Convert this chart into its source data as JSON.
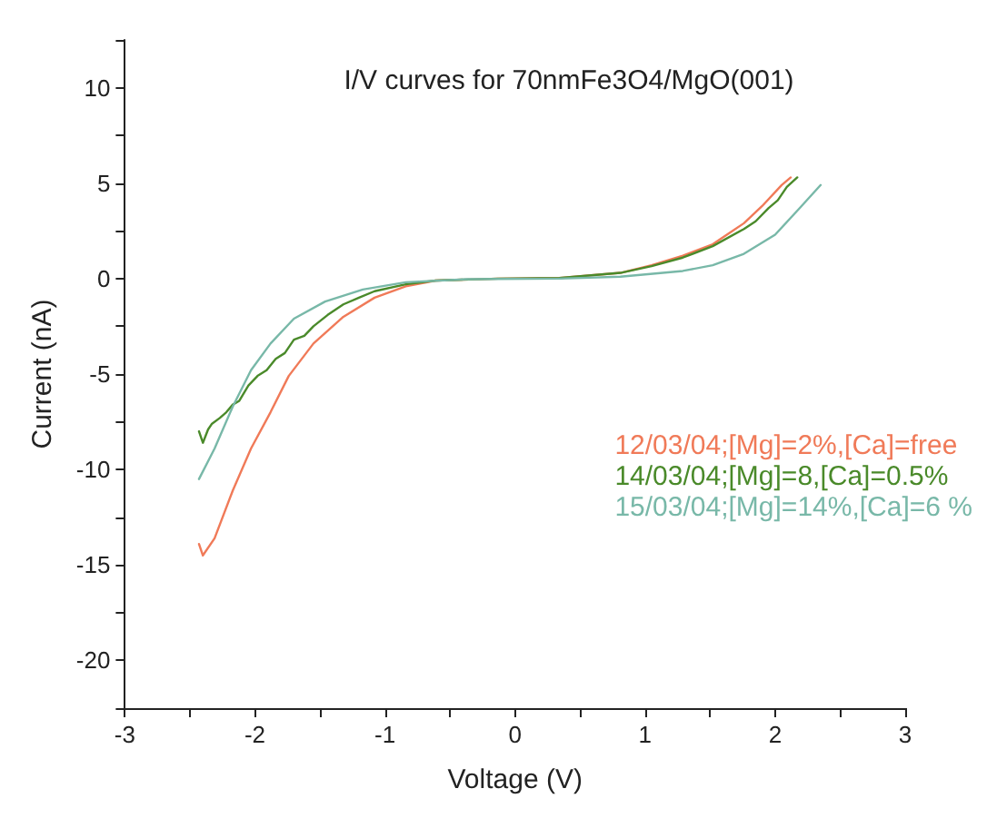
{
  "chart_data": {
    "type": "line",
    "title": "I/V curves for 70nmFe3O4/MgO(001)",
    "xlabel": "Voltage (V)",
    "ylabel": "Current (nA)",
    "xlim": [
      -3,
      3
    ],
    "xticks": [
      -3,
      {
        "value": -2.5,
        "label": null
      },
      -2,
      {
        "value": -1.5,
        "label": null
      },
      -1,
      {
        "value": -0.5,
        "label": null
      },
      0,
      {
        "value": 0.5,
        "label": null
      },
      1,
      {
        "value": 1.5,
        "label": null
      },
      2,
      {
        "value": 2.5,
        "label": null
      },
      3
    ],
    "ylim": [
      -22.5,
      12.5
    ],
    "yticks": [
      {
        "value": -22.5,
        "label": null
      },
      -20,
      {
        "value": -17.5,
        "label": null
      },
      -15,
      {
        "value": -12.5,
        "label": null
      },
      -10,
      {
        "value": -7.5,
        "label": null
      },
      -5,
      {
        "value": -2.5,
        "label": null
      },
      0,
      {
        "value": 2.5,
        "label": null
      },
      5,
      {
        "value": 7.5,
        "label": null
      },
      10,
      {
        "value": 12.5,
        "label": null
      }
    ],
    "grid": false,
    "legend": "right",
    "marker": "none",
    "line_style": "solid",
    "series": [
      {
        "name": "12/03/04;[Mg]=2%,[Ca]=free",
        "color": "#f07a58",
        "x": [
          -2.43,
          -2.4,
          -2.31,
          -2.17,
          -2.03,
          -1.88,
          -1.74,
          -1.55,
          -1.32,
          -1.08,
          -0.84,
          -0.61,
          -0.13,
          0.34,
          0.81,
          1.05,
          1.29,
          1.52,
          1.76,
          1.9,
          2.05,
          2.12
        ],
        "values": [
          -13.9,
          -14.5,
          -13.6,
          -11.1,
          -8.9,
          -7.0,
          -5.1,
          -3.4,
          -2.0,
          -1.0,
          -0.4,
          -0.1,
          0,
          0.03,
          0.3,
          0.7,
          1.2,
          1.8,
          2.9,
          3.8,
          4.9,
          5.3
        ]
      },
      {
        "name": "14/03/04;[Mg]=8,[Ca]=0.5%",
        "color": "#4a8a2a",
        "x": [
          -2.43,
          -2.4,
          -2.36,
          -2.33,
          -2.27,
          -2.22,
          -2.17,
          -2.12,
          -2.05,
          -1.98,
          -1.91,
          -1.84,
          -1.77,
          -1.7,
          -1.62,
          -1.55,
          -1.44,
          -1.32,
          -1.2,
          -1.08,
          -0.84,
          -0.61,
          -0.13,
          0.34,
          0.81,
          1.05,
          1.29,
          1.52,
          1.76,
          1.85,
          1.95,
          2.02,
          2.09,
          2.17
        ],
        "values": [
          -8.0,
          -8.6,
          -7.9,
          -7.6,
          -7.3,
          -7.0,
          -6.6,
          -6.4,
          -5.6,
          -5.1,
          -4.8,
          -4.2,
          -3.9,
          -3.2,
          -3.0,
          -2.5,
          -1.9,
          -1.35,
          -1.0,
          -0.66,
          -0.3,
          -0.1,
          0,
          0.03,
          0.3,
          0.65,
          1.1,
          1.7,
          2.6,
          3.0,
          3.7,
          4.1,
          4.8,
          5.3
        ]
      },
      {
        "name": "15/03/04;[Mg]=14%,[Ca]=6 %",
        "color": "#78b8a8",
        "x": [
          -2.43,
          -2.31,
          -2.17,
          -2.03,
          -1.88,
          -1.7,
          -1.46,
          -1.17,
          -0.84,
          -0.37,
          0.34,
          0.81,
          1.29,
          1.52,
          1.76,
          2.0,
          2.19,
          2.35
        ],
        "values": [
          -10.5,
          -8.9,
          -6.7,
          -4.8,
          -3.4,
          -2.1,
          -1.2,
          -0.57,
          -0.19,
          -0.03,
          0,
          0.1,
          0.4,
          0.7,
          1.3,
          2.3,
          3.7,
          4.9
        ]
      }
    ]
  }
}
